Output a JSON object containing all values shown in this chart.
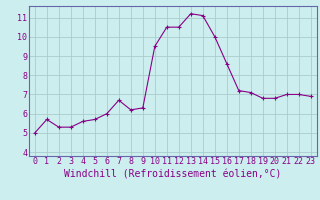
{
  "x": [
    0,
    1,
    2,
    3,
    4,
    5,
    6,
    7,
    8,
    9,
    10,
    11,
    12,
    13,
    14,
    15,
    16,
    17,
    18,
    19,
    20,
    21,
    22,
    23
  ],
  "y": [
    5.0,
    5.7,
    5.3,
    5.3,
    5.6,
    5.7,
    6.0,
    6.7,
    6.2,
    6.3,
    9.5,
    10.5,
    10.5,
    11.2,
    11.1,
    10.0,
    8.6,
    7.2,
    7.1,
    6.8,
    6.8,
    7.0,
    7.0,
    6.9
  ],
  "xlim": [
    -0.5,
    23.5
  ],
  "ylim": [
    3.8,
    11.6
  ],
  "yticks": [
    4,
    5,
    6,
    7,
    8,
    9,
    10,
    11
  ],
  "xticks": [
    0,
    1,
    2,
    3,
    4,
    5,
    6,
    7,
    8,
    9,
    10,
    11,
    12,
    13,
    14,
    15,
    16,
    17,
    18,
    19,
    20,
    21,
    22,
    23
  ],
  "xlabel": "Windchill (Refroidissement éolien,°C)",
  "line_color": "#880088",
  "marker": "+",
  "marker_size": 3,
  "bg_color": "#cceeee",
  "grid_color": "#aacccc",
  "tick_label_fontsize": 6,
  "xlabel_fontsize": 7,
  "spine_color": "#6666aa"
}
